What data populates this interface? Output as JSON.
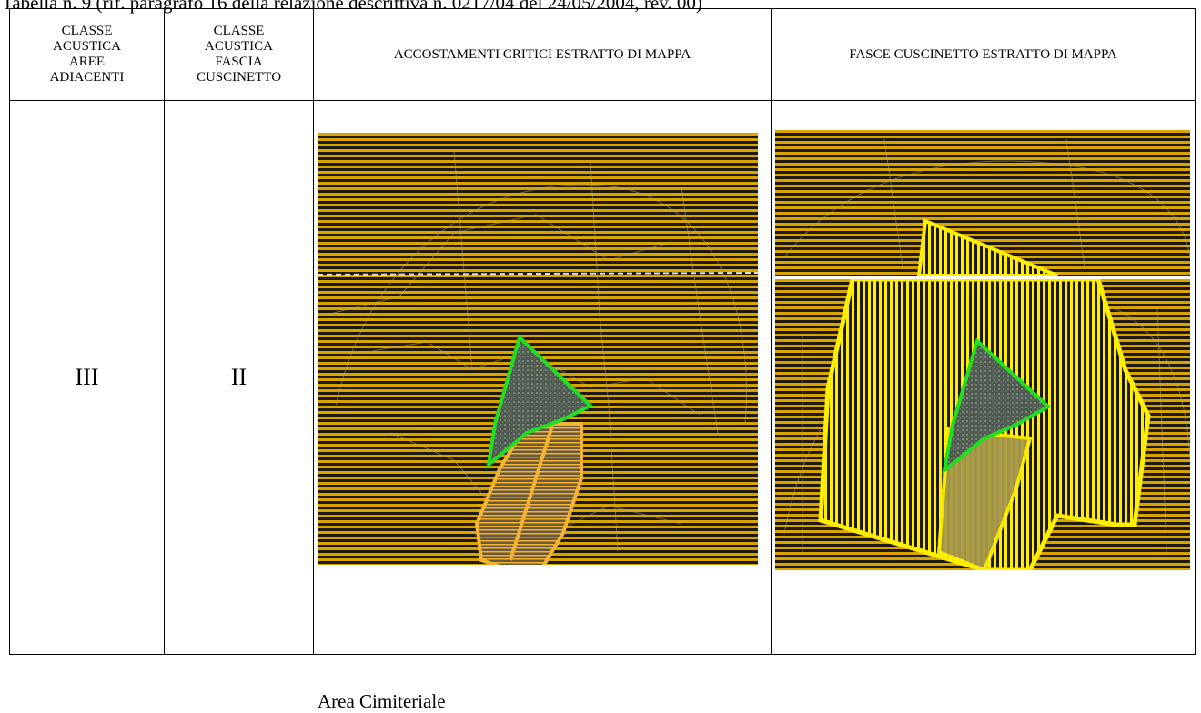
{
  "caption": "Tabella n. 9 (rif. paragrafo 16 della relazione descrittiva n. 0217/04 del 24/05/2004, rev. 00)",
  "headers": {
    "col1": [
      "CLASSE",
      "ACUSTICA",
      "AREE",
      "ADIACENTI"
    ],
    "col2": [
      "CLASSE",
      "ACUSTICA",
      "FASCIA",
      "CUSCINETTO"
    ],
    "col3": "ACCOSTAMENTI CRITICI ESTRATTO DI MAPPA",
    "col4": "FASCE CUSCINETTO ESTRATTO DI MAPPA"
  },
  "row": {
    "classe_aree_adiacenti": "III",
    "classe_fascia_cuscinetto": "II",
    "map_label": "Area Cimiteriale"
  },
  "colors": {
    "map_bg": "#1f1a08",
    "stripe": "#d9a300",
    "buffer_yellow": "#ffee00",
    "critical_orange": "#f5b335",
    "cemetery_green": "#22dd22",
    "cemetery_fill": "#5f6b60"
  }
}
